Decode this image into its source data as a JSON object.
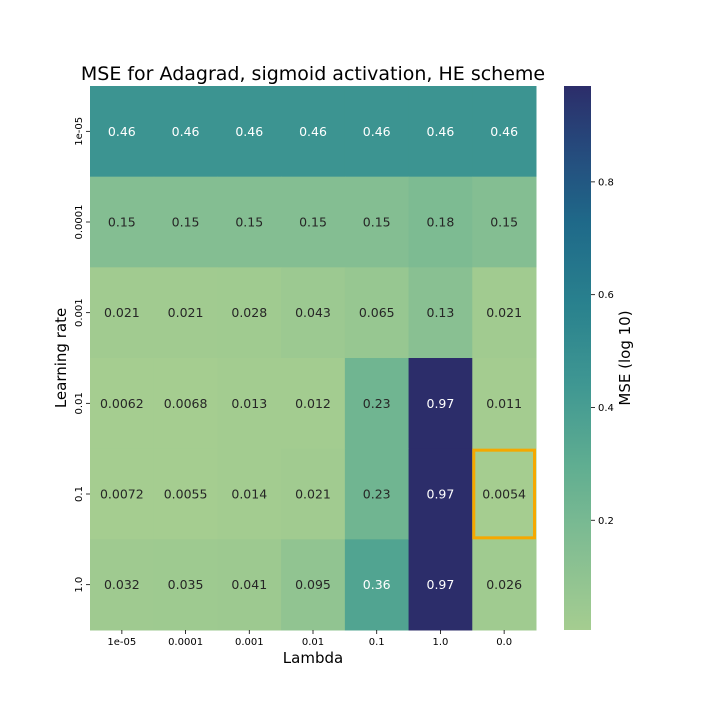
{
  "chart_data": {
    "type": "heatmap",
    "title": "MSE for Adagrad, sigmoid activation, HE scheme",
    "xlabel": "Lambda",
    "ylabel": "Learning rate",
    "x_categories": [
      "1e-05",
      "0.0001",
      "0.001",
      "0.01",
      "0.1",
      "1.0",
      "0.0"
    ],
    "y_categories": [
      "1e-05",
      "0.0001",
      "0.001",
      "0.01",
      "0.1",
      "1.0"
    ],
    "values": [
      [
        0.46,
        0.46,
        0.46,
        0.46,
        0.46,
        0.46,
        0.46
      ],
      [
        0.15,
        0.15,
        0.15,
        0.15,
        0.15,
        0.18,
        0.15
      ],
      [
        0.021,
        0.021,
        0.028,
        0.043,
        0.065,
        0.13,
        0.021
      ],
      [
        0.0062,
        0.0068,
        0.013,
        0.012,
        0.23,
        0.97,
        0.011
      ],
      [
        0.0072,
        0.0055,
        0.014,
        0.021,
        0.23,
        0.97,
        0.0054
      ],
      [
        0.032,
        0.035,
        0.041,
        0.095,
        0.36,
        0.97,
        0.026
      ]
    ],
    "highlighted_cell": {
      "row": "0.1",
      "column": "0.0",
      "value": 0.0054,
      "color": "#f5a800"
    },
    "colorbar": {
      "label": "MSE (log 10)",
      "range": [
        0.0054,
        0.97
      ],
      "ticks": [
        "0.2",
        "0.4",
        "0.6",
        "0.8"
      ],
      "colormap": "crest"
    }
  }
}
